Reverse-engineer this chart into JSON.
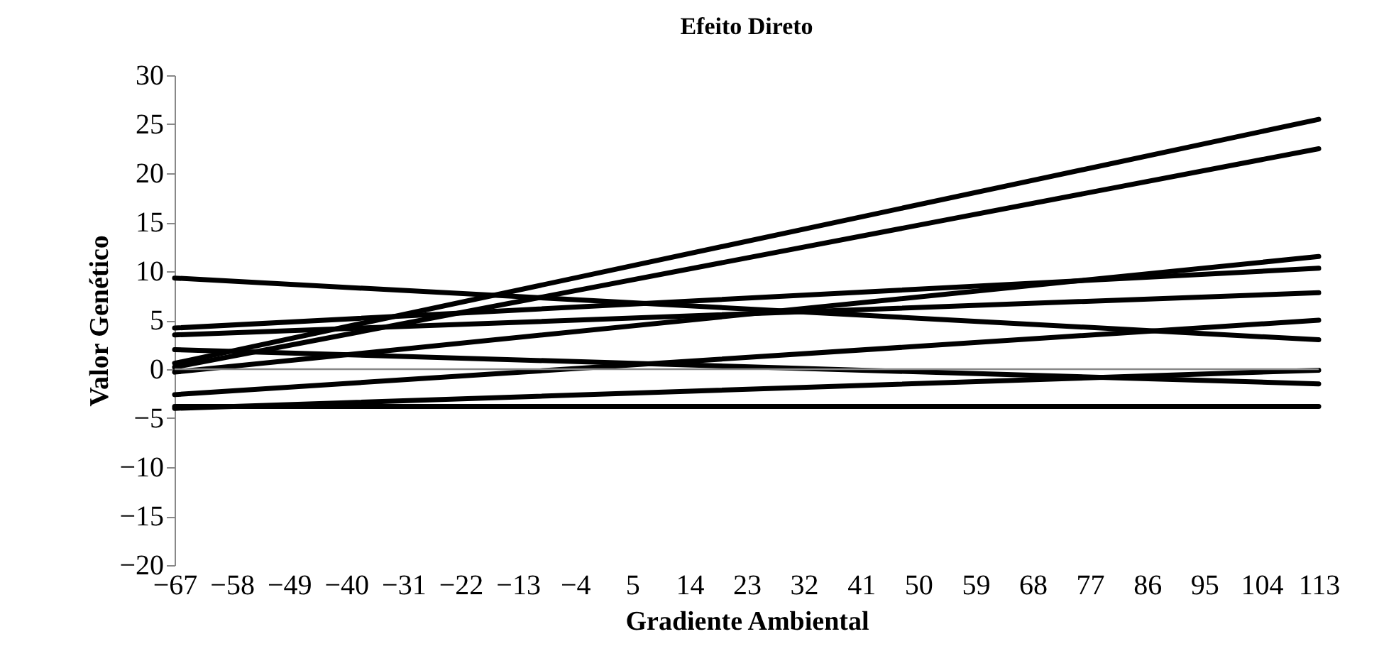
{
  "chart_data": {
    "type": "line",
    "title": "Efeito Direto",
    "xlabel": "Gradiente Ambiental",
    "ylabel": "Valor Genético",
    "x": [
      -67,
      113
    ],
    "series": [
      {
        "color": "#000000",
        "values": [
          0.6,
          25.5
        ]
      },
      {
        "color": "#000000",
        "values": [
          0.2,
          22.5
        ]
      },
      {
        "color": "#000000",
        "values": [
          -0.3,
          11.5
        ]
      },
      {
        "color": "#000000",
        "values": [
          4.2,
          10.3
        ]
      },
      {
        "color": "#000000",
        "values": [
          3.5,
          7.8
        ]
      },
      {
        "color": "#000000",
        "values": [
          9.3,
          3.0
        ]
      },
      {
        "color": "#000000",
        "values": [
          -2.6,
          5.0
        ]
      },
      {
        "color": "#000000",
        "values": [
          2.0,
          -1.5
        ]
      },
      {
        "color": "#000000",
        "values": [
          -4.0,
          -0.1
        ]
      },
      {
        "color": "#000000",
        "values": [
          -3.8,
          -3.8
        ]
      }
    ],
    "xlim": [
      -67,
      113
    ],
    "xticks": [
      -67,
      -58,
      -49,
      -40,
      -31,
      -22,
      -13,
      -4,
      5,
      14,
      23,
      32,
      41,
      50,
      59,
      68,
      77,
      86,
      95,
      104,
      113
    ],
    "ylim": [
      -20,
      30
    ],
    "yticks": [
      -20,
      -15,
      -10,
      -5,
      0,
      5,
      10,
      15,
      20,
      25,
      30
    ],
    "ref_lines": [
      {
        "axis": "y",
        "value": 0,
        "color": "#888888"
      }
    ],
    "grid": false,
    "legend": false,
    "marker": "none",
    "line_style": "solid"
  }
}
